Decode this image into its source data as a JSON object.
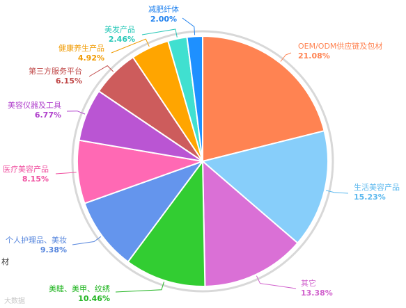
{
  "chart_data": {
    "type": "pie",
    "title": "",
    "slices": [
      {
        "label": "OEM/ODM供应链及包材",
        "pct": "21.08%",
        "value": 21.08,
        "color": "#FF8352",
        "label_color": "#FF8352"
      },
      {
        "label": "生活美容产品",
        "pct": "15.23%",
        "value": 15.23,
        "color": "#87CEFA",
        "label_color": "#5BB8EE"
      },
      {
        "label": "其它",
        "pct": "13.38%",
        "value": 13.38,
        "color": "#DA70D6",
        "label_color": "#D060CC"
      },
      {
        "label": "美睫、美甲、纹绣",
        "pct": "10.46%",
        "value": 10.46,
        "color": "#32CD32",
        "label_color": "#22B522"
      },
      {
        "label": "个人护理品、美妆",
        "pct": "9.38%",
        "value": 9.38,
        "color": "#6495ED",
        "label_color": "#5585DD"
      },
      {
        "label": "医疗美容产品",
        "pct": "8.15%",
        "value": 8.15,
        "color": "#FF69B4",
        "label_color": "#F050A0"
      },
      {
        "label": "美容仪器及工具",
        "pct": "6.77%",
        "value": 6.77,
        "color": "#BA55D3",
        "label_color": "#B040CC"
      },
      {
        "label": "第三方服务平台",
        "pct": "6.15%",
        "value": 6.15,
        "color": "#CD5C5C",
        "label_color": "#C04848"
      },
      {
        "label": "健康养生产品",
        "pct": "4.92%",
        "value": 4.92,
        "color": "#FFA500",
        "label_color": "#F09A00"
      },
      {
        "label": "美发产品",
        "pct": "2.46%",
        "value": 2.46,
        "color": "#40E0D0",
        "label_color": "#28C8B8"
      },
      {
        "label": "减肥纤体",
        "pct": "2.00%",
        "value": 2.0,
        "color": "#1E90FF",
        "label_color": "#1E80EE"
      }
    ]
  },
  "edge_text": "材",
  "watermark": "大数据"
}
